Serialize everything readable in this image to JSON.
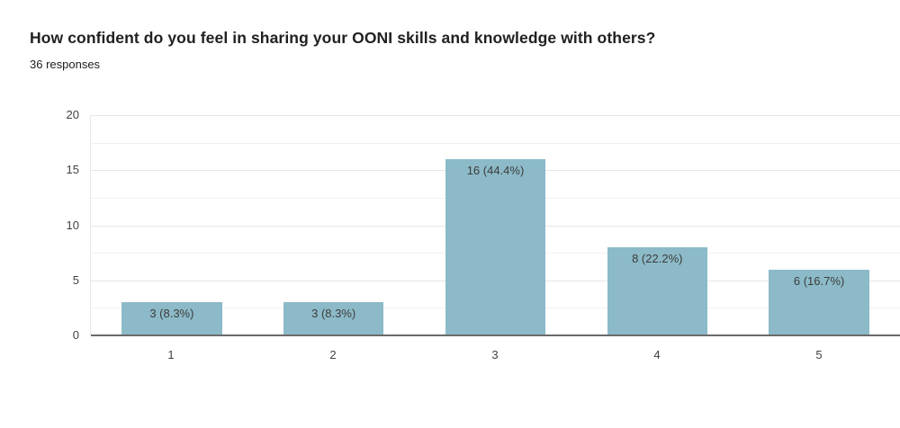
{
  "header": {
    "title": "How confident do you feel in sharing your OONI skills and knowledge with others?",
    "responses": "36 responses"
  },
  "colors": {
    "bar": "#8cbac8",
    "axis_line": "#6b6b6b",
    "gridline_major": "#e6e6e6",
    "gridline_minor": "#f1f1f1",
    "title_text": "#212121",
    "tick_text": "#424242"
  },
  "chart_data": {
    "type": "bar",
    "title": "How confident do you feel in sharing your OONI skills and knowledge with others?",
    "subtitle": "36 responses",
    "categories": [
      "1",
      "2",
      "3",
      "4",
      "5"
    ],
    "values": [
      3,
      3,
      16,
      8,
      6
    ],
    "bar_labels": [
      "3 (8.3%)",
      "3 (8.3%)",
      "16 (44.4%)",
      "8 (22.2%)",
      "6 (16.7%)"
    ],
    "ylim": [
      0,
      20
    ],
    "yticks": [
      0,
      5,
      10,
      15,
      20
    ],
    "minor_grid_step": 2.5,
    "grid": true,
    "legend_position": "none",
    "xlabel": "",
    "ylabel": ""
  }
}
